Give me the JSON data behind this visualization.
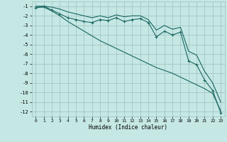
{
  "title": "",
  "xlabel": "Humidex (Indice chaleur)",
  "ylabel": "",
  "bg_color": "#c5e8e5",
  "grid_color": "#9fbfbc",
  "line_color": "#1a6660",
  "x": [
    0,
    1,
    2,
    3,
    4,
    5,
    6,
    7,
    8,
    9,
    10,
    11,
    12,
    13,
    14,
    15,
    16,
    17,
    18,
    19,
    20,
    21,
    22,
    23
  ],
  "y_main": [
    -1.2,
    -1.0,
    -1.4,
    -1.8,
    -2.2,
    -2.4,
    -2.6,
    -2.7,
    -2.4,
    -2.5,
    -2.2,
    -2.6,
    -2.4,
    -2.3,
    -2.7,
    -4.2,
    -3.6,
    -4.0,
    -3.7,
    -6.7,
    -7.1,
    -8.7,
    -9.8,
    -12.1
  ],
  "y_low": [
    -1.1,
    -1.1,
    -1.5,
    -2.0,
    -2.6,
    -3.1,
    -3.6,
    -4.1,
    -4.6,
    -5.0,
    -5.4,
    -5.8,
    -6.2,
    -6.6,
    -7.0,
    -7.4,
    -7.7,
    -8.0,
    -8.4,
    -8.8,
    -9.2,
    -9.6,
    -10.1,
    -11.9
  ],
  "y_high": [
    -1.0,
    -1.0,
    -1.1,
    -1.3,
    -1.6,
    -1.8,
    -2.0,
    -2.2,
    -2.0,
    -2.2,
    -1.9,
    -2.1,
    -2.0,
    -2.0,
    -2.4,
    -3.5,
    -3.0,
    -3.4,
    -3.2,
    -5.7,
    -6.1,
    -7.8,
    -9.0,
    -11.0
  ],
  "ylim": [
    -12.5,
    -0.5
  ],
  "xlim": [
    -0.5,
    23.5
  ],
  "yticks": [
    -1,
    -2,
    -3,
    -4,
    -5,
    -6,
    -7,
    -8,
    -9,
    -10,
    -11,
    -12
  ],
  "xticks": [
    0,
    1,
    2,
    3,
    4,
    5,
    6,
    7,
    8,
    9,
    10,
    11,
    12,
    13,
    14,
    15,
    16,
    17,
    18,
    19,
    20,
    21,
    22,
    23
  ]
}
